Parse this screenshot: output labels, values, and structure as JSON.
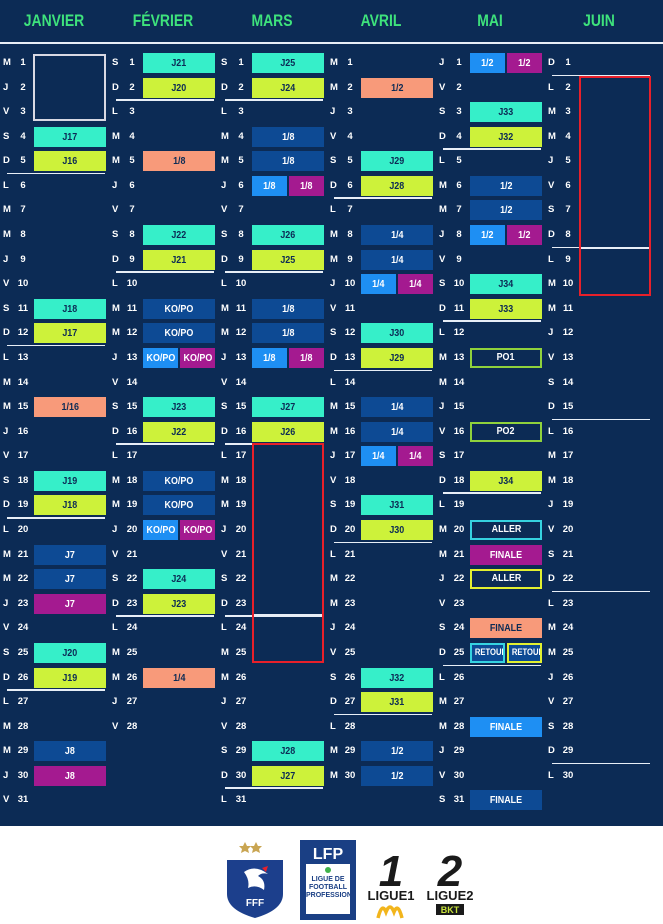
{
  "months": [
    {
      "name": "JANVIER",
      "letters": [
        "M",
        "J",
        "V",
        "S",
        "D",
        "L",
        "M",
        "M",
        "J",
        "V",
        "S",
        "D",
        "L",
        "M",
        "M",
        "J",
        "V",
        "S",
        "D",
        "L",
        "M",
        "M",
        "J",
        "V",
        "S",
        "D",
        "L",
        "M",
        "M",
        "J",
        "V"
      ],
      "start": 0,
      "seps": [
        5,
        12,
        19,
        26
      ],
      "events": [
        {
          "d": 4,
          "label": "J17",
          "c": "c-cyan"
        },
        {
          "d": 5,
          "label": "J16",
          "c": "c-lime"
        },
        {
          "d": 11,
          "label": "J18",
          "c": "c-cyan"
        },
        {
          "d": 12,
          "label": "J17",
          "c": "c-lime"
        },
        {
          "d": 15,
          "label": "1/16",
          "c": "c-orange"
        },
        {
          "d": 18,
          "label": "J19",
          "c": "c-cyan"
        },
        {
          "d": 19,
          "label": "J18",
          "c": "c-lime"
        },
        {
          "d": 21,
          "label": "J7",
          "c": "c-dblue"
        },
        {
          "d": 22,
          "label": "J7",
          "c": "c-dblue"
        },
        {
          "d": 23,
          "label": "J7",
          "c": "c-purple"
        },
        {
          "d": 25,
          "label": "J20",
          "c": "c-cyan"
        },
        {
          "d": 26,
          "label": "J19",
          "c": "c-lime"
        },
        {
          "d": 29,
          "label": "J8",
          "c": "c-dblue"
        },
        {
          "d": 30,
          "label": "J8",
          "c": "c-purple"
        }
      ]
    },
    {
      "name": "FÉVRIER",
      "letters": [
        "S",
        "D",
        "L",
        "M",
        "M",
        "J",
        "V",
        "S",
        "D",
        "L",
        "M",
        "M",
        "J",
        "V",
        "S",
        "D",
        "L",
        "M",
        "M",
        "J",
        "V",
        "S",
        "D",
        "L",
        "M",
        "M",
        "J",
        "V"
      ],
      "start": 0,
      "seps": [
        2,
        9,
        16,
        23
      ],
      "events": [
        {
          "d": 1,
          "label": "J21",
          "c": "c-cyan"
        },
        {
          "d": 2,
          "label": "J20",
          "c": "c-lime"
        },
        {
          "d": 5,
          "label": "1/8",
          "c": "c-orange"
        },
        {
          "d": 8,
          "label": "J22",
          "c": "c-cyan"
        },
        {
          "d": 9,
          "label": "J21",
          "c": "c-lime"
        },
        {
          "d": 11,
          "label": "KO/PO",
          "c": "c-dblue"
        },
        {
          "d": 12,
          "label": "KO/PO",
          "c": "c-dblue"
        },
        {
          "d": 13,
          "label": "KO/PO",
          "c": "c-mblue",
          "half": 1
        },
        {
          "d": 13,
          "label": "KO/PO",
          "c": "c-purple",
          "half": 2
        },
        {
          "d": 15,
          "label": "J23",
          "c": "c-cyan"
        },
        {
          "d": 16,
          "label": "J22",
          "c": "c-lime"
        },
        {
          "d": 18,
          "label": "KO/PO",
          "c": "c-dblue"
        },
        {
          "d": 19,
          "label": "KO/PO",
          "c": "c-dblue"
        },
        {
          "d": 20,
          "label": "KO/PO",
          "c": "c-mblue",
          "half": 1
        },
        {
          "d": 20,
          "label": "KO/PO",
          "c": "c-purple",
          "half": 2
        },
        {
          "d": 22,
          "label": "J24",
          "c": "c-cyan"
        },
        {
          "d": 23,
          "label": "J23",
          "c": "c-lime"
        },
        {
          "d": 26,
          "label": "1/4",
          "c": "c-orange"
        }
      ]
    },
    {
      "name": "MARS",
      "letters": [
        "S",
        "D",
        "L",
        "M",
        "M",
        "J",
        "V",
        "S",
        "D",
        "L",
        "M",
        "M",
        "J",
        "V",
        "S",
        "D",
        "L",
        "M",
        "M",
        "J",
        "V",
        "S",
        "D",
        "L",
        "M",
        "M",
        "J",
        "V",
        "S",
        "D",
        "L"
      ],
      "start": 0,
      "seps": [
        2,
        9,
        16,
        23,
        30
      ],
      "events": [
        {
          "d": 1,
          "label": "J25",
          "c": "c-cyan"
        },
        {
          "d": 2,
          "label": "J24",
          "c": "c-lime"
        },
        {
          "d": 4,
          "label": "1/8",
          "c": "c-dblue"
        },
        {
          "d": 5,
          "label": "1/8",
          "c": "c-dblue"
        },
        {
          "d": 6,
          "label": "1/8",
          "c": "c-mblue",
          "half": 1
        },
        {
          "d": 6,
          "label": "1/8",
          "c": "c-purple",
          "half": 2
        },
        {
          "d": 8,
          "label": "J26",
          "c": "c-cyan"
        },
        {
          "d": 9,
          "label": "J25",
          "c": "c-lime"
        },
        {
          "d": 11,
          "label": "1/8",
          "c": "c-dblue"
        },
        {
          "d": 12,
          "label": "1/8",
          "c": "c-dblue"
        },
        {
          "d": 13,
          "label": "1/8",
          "c": "c-mblue",
          "half": 1
        },
        {
          "d": 13,
          "label": "1/8",
          "c": "c-purple",
          "half": 2
        },
        {
          "d": 15,
          "label": "J27",
          "c": "c-cyan"
        },
        {
          "d": 16,
          "label": "J26",
          "c": "c-lime"
        },
        {
          "d": 29,
          "label": "J28",
          "c": "c-cyan"
        },
        {
          "d": 30,
          "label": "J27",
          "c": "c-lime"
        }
      ]
    },
    {
      "name": "AVRIL",
      "letters": [
        "M",
        "M",
        "J",
        "V",
        "S",
        "D",
        "L",
        "M",
        "M",
        "J",
        "V",
        "S",
        "D",
        "L",
        "M",
        "M",
        "J",
        "V",
        "S",
        "D",
        "L",
        "M",
        "M",
        "J",
        "V",
        "S",
        "D",
        "L",
        "M",
        "M"
      ],
      "start": 0,
      "seps": [
        6,
        13,
        20,
        27
      ],
      "events": [
        {
          "d": 2,
          "label": "1/2",
          "c": "c-orange"
        },
        {
          "d": 5,
          "label": "J29",
          "c": "c-cyan"
        },
        {
          "d": 6,
          "label": "J28",
          "c": "c-lime"
        },
        {
          "d": 8,
          "label": "1/4",
          "c": "c-dblue"
        },
        {
          "d": 9,
          "label": "1/4",
          "c": "c-dblue"
        },
        {
          "d": 10,
          "label": "1/4",
          "c": "c-mblue",
          "half": 1
        },
        {
          "d": 10,
          "label": "1/4",
          "c": "c-purple",
          "half": 2
        },
        {
          "d": 12,
          "label": "J30",
          "c": "c-cyan"
        },
        {
          "d": 13,
          "label": "J29",
          "c": "c-lime"
        },
        {
          "d": 15,
          "label": "1/4",
          "c": "c-dblue"
        },
        {
          "d": 16,
          "label": "1/4",
          "c": "c-dblue"
        },
        {
          "d": 17,
          "label": "1/4",
          "c": "c-mblue",
          "half": 1
        },
        {
          "d": 17,
          "label": "1/4",
          "c": "c-purple",
          "half": 2
        },
        {
          "d": 19,
          "label": "J31",
          "c": "c-cyan"
        },
        {
          "d": 20,
          "label": "J30",
          "c": "c-lime"
        },
        {
          "d": 26,
          "label": "J32",
          "c": "c-cyan"
        },
        {
          "d": 27,
          "label": "J31",
          "c": "c-lime"
        },
        {
          "d": 29,
          "label": "1/2",
          "c": "c-dblue"
        },
        {
          "d": 30,
          "label": "1/2",
          "c": "c-dblue"
        }
      ]
    },
    {
      "name": "MAI",
      "letters": [
        "J",
        "V",
        "S",
        "D",
        "L",
        "M",
        "M",
        "J",
        "V",
        "S",
        "D",
        "L",
        "M",
        "M",
        "J",
        "V",
        "S",
        "D",
        "L",
        "M",
        "M",
        "J",
        "V",
        "S",
        "D",
        "L",
        "M",
        "M",
        "J",
        "V",
        "S"
      ],
      "start": 0,
      "seps": [
        4,
        11,
        18,
        25
      ],
      "events": [
        {
          "d": 1,
          "label": "1/2",
          "c": "c-mblue",
          "half": 1
        },
        {
          "d": 1,
          "label": "1/2",
          "c": "c-purple",
          "half": 2
        },
        {
          "d": 3,
          "label": "J33",
          "c": "c-cyan"
        },
        {
          "d": 4,
          "label": "J32",
          "c": "c-lime"
        },
        {
          "d": 6,
          "label": "1/2",
          "c": "c-dblue"
        },
        {
          "d": 7,
          "label": "1/2",
          "c": "c-dblue"
        },
        {
          "d": 8,
          "label": "1/2",
          "c": "c-mblue",
          "half": 1
        },
        {
          "d": 8,
          "label": "1/2",
          "c": "c-purple",
          "half": 2
        },
        {
          "d": 10,
          "label": "J34",
          "c": "c-cyan"
        },
        {
          "d": 11,
          "label": "J33",
          "c": "c-lime"
        },
        {
          "d": 13,
          "label": "PO1",
          "c": "c-olime"
        },
        {
          "d": 16,
          "label": "PO2",
          "c": "c-olime"
        },
        {
          "d": 18,
          "label": "J34",
          "c": "c-lime"
        },
        {
          "d": 20,
          "label": "ALLER",
          "c": "c-ocyan"
        },
        {
          "d": 21,
          "label": "FINALE",
          "c": "c-purple"
        },
        {
          "d": 22,
          "label": "ALLER",
          "c": "c-oyellow"
        },
        {
          "d": 24,
          "label": "FINALE",
          "c": "c-orange"
        },
        {
          "d": 25,
          "label": "RETOUR",
          "c": "c-cyanobox",
          "half": 1
        },
        {
          "d": 25,
          "label": "RETOUR",
          "c": "c-yelobox",
          "half": 2
        },
        {
          "d": 28,
          "label": "FINALE",
          "c": "c-mblue"
        },
        {
          "d": 31,
          "label": "FINALE",
          "c": "c-dblue"
        }
      ]
    },
    {
      "name": "JUIN",
      "letters": [
        "D",
        "L",
        "M",
        "M",
        "J",
        "V",
        "S",
        "D",
        "L",
        "M",
        "M",
        "J",
        "V",
        "S",
        "D",
        "L",
        "M",
        "M",
        "J",
        "V",
        "S",
        "D",
        "L",
        "M",
        "M",
        "J",
        "V",
        "S",
        "D",
        "L"
      ],
      "start": 0,
      "seps": [
        1,
        8,
        15,
        22,
        29
      ],
      "events": []
    }
  ],
  "logos": {
    "fff": "FFF",
    "lfp": "LFP",
    "lfp_sub": "LIGUE DE FOOTBALL PROFESSIONNEL",
    "ligue1_num": "1",
    "ligue1": "LIGUE1",
    "ligue2_num": "2",
    "ligue2": "LIGUE2",
    "ligue2_sponsor": "BKT"
  },
  "colors": {
    "background": "#0c2b55",
    "month_header": "#3ee27c",
    "ligue1_match": "#36efc9",
    "ligue2_match": "#cdf23a",
    "coupe_de_france": "#f89a7a",
    "european_cup": "#0d4a94",
    "european_cup_alt": "#1e8ff3",
    "conference_league": "#a41a90",
    "highlight_red": "#e8202a"
  }
}
